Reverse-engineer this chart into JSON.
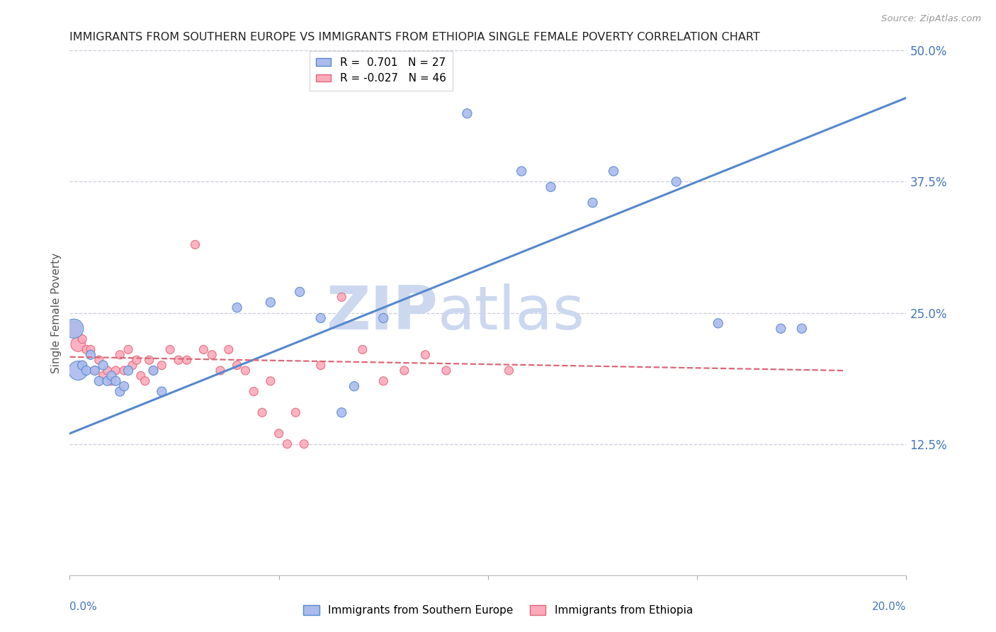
{
  "title": "IMMIGRANTS FROM SOUTHERN EUROPE VS IMMIGRANTS FROM ETHIOPIA SINGLE FEMALE POVERTY CORRELATION CHART",
  "source": "Source: ZipAtlas.com",
  "ylabel": "Single Female Poverty",
  "right_yticklabels": [
    "",
    "12.5%",
    "25.0%",
    "37.5%",
    "50.0%"
  ],
  "right_yticks": [
    0.0,
    0.125,
    0.25,
    0.375,
    0.5
  ],
  "xlim": [
    0.0,
    0.2
  ],
  "ylim": [
    0.0,
    0.5
  ],
  "watermark": "ZIPatlas",
  "blue_scatter": [
    [
      0.001,
      0.235
    ],
    [
      0.002,
      0.195
    ],
    [
      0.003,
      0.2
    ],
    [
      0.004,
      0.195
    ],
    [
      0.005,
      0.21
    ],
    [
      0.006,
      0.195
    ],
    [
      0.007,
      0.185
    ],
    [
      0.008,
      0.2
    ],
    [
      0.009,
      0.185
    ],
    [
      0.01,
      0.19
    ],
    [
      0.011,
      0.185
    ],
    [
      0.012,
      0.175
    ],
    [
      0.013,
      0.18
    ],
    [
      0.014,
      0.195
    ],
    [
      0.02,
      0.195
    ],
    [
      0.022,
      0.175
    ],
    [
      0.04,
      0.255
    ],
    [
      0.048,
      0.26
    ],
    [
      0.055,
      0.27
    ],
    [
      0.06,
      0.245
    ],
    [
      0.065,
      0.155
    ],
    [
      0.068,
      0.18
    ],
    [
      0.075,
      0.245
    ],
    [
      0.095,
      0.44
    ],
    [
      0.108,
      0.385
    ],
    [
      0.115,
      0.37
    ],
    [
      0.125,
      0.355
    ],
    [
      0.13,
      0.385
    ],
    [
      0.145,
      0.375
    ],
    [
      0.155,
      0.24
    ],
    [
      0.17,
      0.235
    ],
    [
      0.175,
      0.235
    ]
  ],
  "pink_scatter": [
    [
      0.001,
      0.235
    ],
    [
      0.002,
      0.22
    ],
    [
      0.003,
      0.225
    ],
    [
      0.004,
      0.215
    ],
    [
      0.005,
      0.215
    ],
    [
      0.006,
      0.195
    ],
    [
      0.007,
      0.205
    ],
    [
      0.008,
      0.19
    ],
    [
      0.009,
      0.195
    ],
    [
      0.01,
      0.185
    ],
    [
      0.011,
      0.195
    ],
    [
      0.012,
      0.21
    ],
    [
      0.013,
      0.195
    ],
    [
      0.014,
      0.215
    ],
    [
      0.015,
      0.2
    ],
    [
      0.016,
      0.205
    ],
    [
      0.017,
      0.19
    ],
    [
      0.018,
      0.185
    ],
    [
      0.019,
      0.205
    ],
    [
      0.02,
      0.195
    ],
    [
      0.022,
      0.2
    ],
    [
      0.024,
      0.215
    ],
    [
      0.026,
      0.205
    ],
    [
      0.028,
      0.205
    ],
    [
      0.03,
      0.315
    ],
    [
      0.032,
      0.215
    ],
    [
      0.034,
      0.21
    ],
    [
      0.036,
      0.195
    ],
    [
      0.038,
      0.215
    ],
    [
      0.04,
      0.2
    ],
    [
      0.042,
      0.195
    ],
    [
      0.044,
      0.175
    ],
    [
      0.046,
      0.155
    ],
    [
      0.048,
      0.185
    ],
    [
      0.05,
      0.135
    ],
    [
      0.052,
      0.125
    ],
    [
      0.054,
      0.155
    ],
    [
      0.056,
      0.125
    ],
    [
      0.06,
      0.2
    ],
    [
      0.065,
      0.265
    ],
    [
      0.07,
      0.215
    ],
    [
      0.075,
      0.185
    ],
    [
      0.08,
      0.195
    ],
    [
      0.085,
      0.21
    ],
    [
      0.09,
      0.195
    ],
    [
      0.105,
      0.195
    ]
  ],
  "blue_line_x": [
    0.0,
    0.2
  ],
  "blue_line_y": [
    0.135,
    0.455
  ],
  "pink_line_x": [
    0.0,
    0.185
  ],
  "pink_line_y": [
    0.208,
    0.195
  ],
  "blue_color": "#5588cc",
  "pink_color": "#dd6677",
  "blue_fill": "#aabbee",
  "pink_fill": "#ffaabb",
  "grid_color": "#ccccdd",
  "title_color": "#222222",
  "axis_label_color": "#4477bb",
  "watermark_color": "#ccd8ef"
}
